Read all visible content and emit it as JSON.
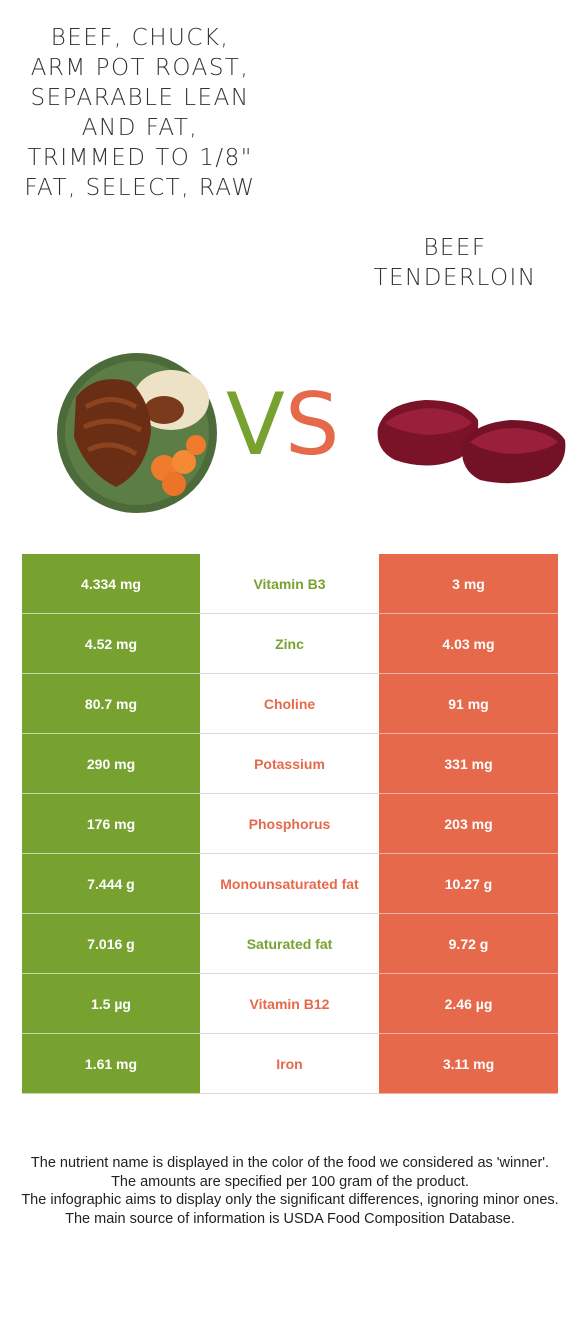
{
  "left_food": {
    "title": "Beef, chuck, arm pot roast, separable lean and fat, trimmed to 1/8\" fat, select, raw",
    "color": "#78a22f",
    "image_icon": "pot-roast-plate-image"
  },
  "right_food": {
    "title": "Beef tenderloin",
    "color": "#e5694a",
    "image_icon": "raw-beef-tenderloin-image"
  },
  "vs": {
    "v": "V",
    "s": "S"
  },
  "rows": [
    {
      "nutrient": "Vitamin B3",
      "left": "4.334 mg",
      "right": "3 mg",
      "winner": "left"
    },
    {
      "nutrient": "Zinc",
      "left": "4.52 mg",
      "right": "4.03 mg",
      "winner": "left"
    },
    {
      "nutrient": "Choline",
      "left": "80.7 mg",
      "right": "91 mg",
      "winner": "right"
    },
    {
      "nutrient": "Potassium",
      "left": "290 mg",
      "right": "331 mg",
      "winner": "right"
    },
    {
      "nutrient": "Phosphorus",
      "left": "176 mg",
      "right": "203 mg",
      "winner": "right"
    },
    {
      "nutrient": "Monounsaturated fat",
      "left": "7.444 g",
      "right": "10.27 g",
      "winner": "right"
    },
    {
      "nutrient": "Saturated fat",
      "left": "7.016 g",
      "right": "9.72 g",
      "winner": "left"
    },
    {
      "nutrient": "Vitamin B12",
      "left": "1.5 µg",
      "right": "2.46 µg",
      "winner": "right"
    },
    {
      "nutrient": "Iron",
      "left": "1.61 mg",
      "right": "3.11 mg",
      "winner": "right"
    }
  ],
  "footer": {
    "line1": "The nutrient name is displayed in the color of the food we considered as 'winner'.",
    "line2": "The amounts are specified per 100 gram of the product.",
    "line3": "The infographic aims to display only the significant differences, ignoring minor ones.",
    "line4": "The main source of information is USDA Food Composition Database."
  }
}
